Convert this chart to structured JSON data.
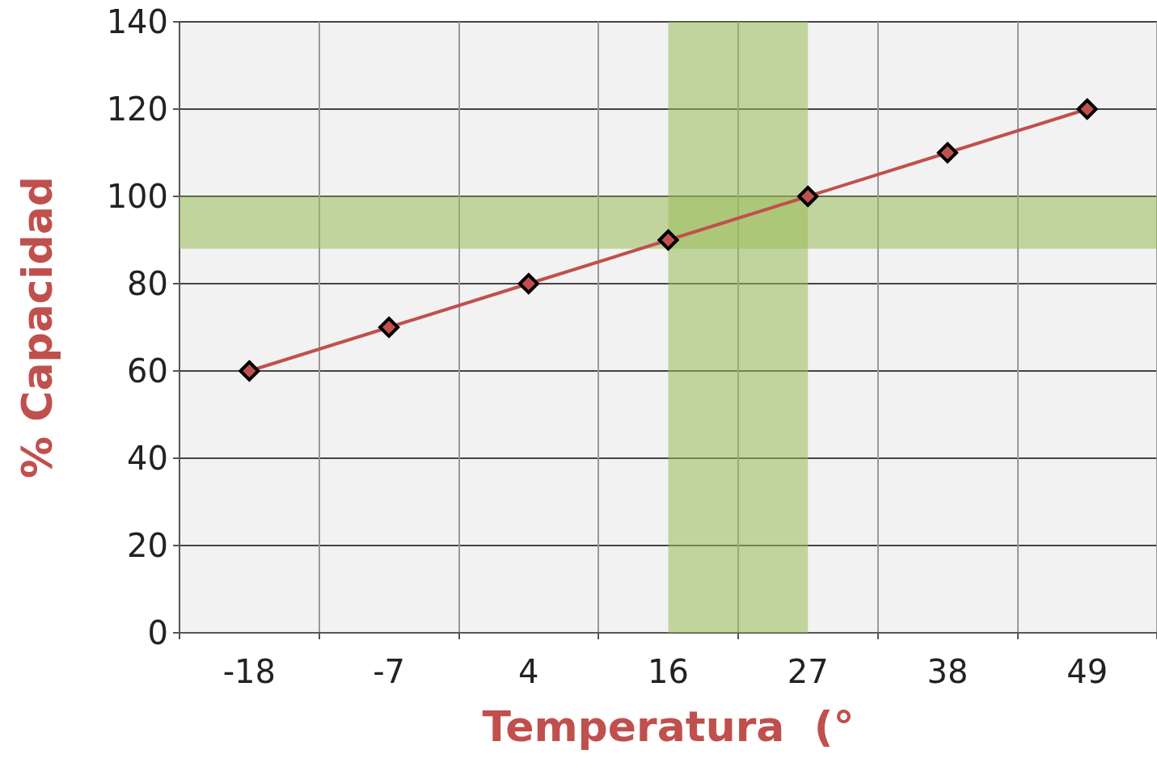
{
  "chart_data": {
    "type": "line",
    "xlabel": "Temperatura  (°",
    "ylabel": "% Capacidad",
    "categories": [
      "-18",
      "-7",
      "4",
      "16",
      "27",
      "38",
      "49"
    ],
    "series": [
      {
        "color": "#c0504d",
        "values": [
          60,
          70,
          80,
          90,
          100,
          110,
          120
        ]
      }
    ],
    "ylim": [
      0,
      140
    ],
    "yticks": [
      0,
      20,
      40,
      60,
      80,
      100,
      120,
      140
    ],
    "grid": true,
    "marker": "diamond",
    "line_style": "solid",
    "bands": [
      {
        "axis": "y",
        "from": 88,
        "to": 100,
        "color": "#9bbb59"
      },
      {
        "axis": "x",
        "from": "16",
        "to": "27",
        "color": "#9bbb59"
      }
    ]
  }
}
